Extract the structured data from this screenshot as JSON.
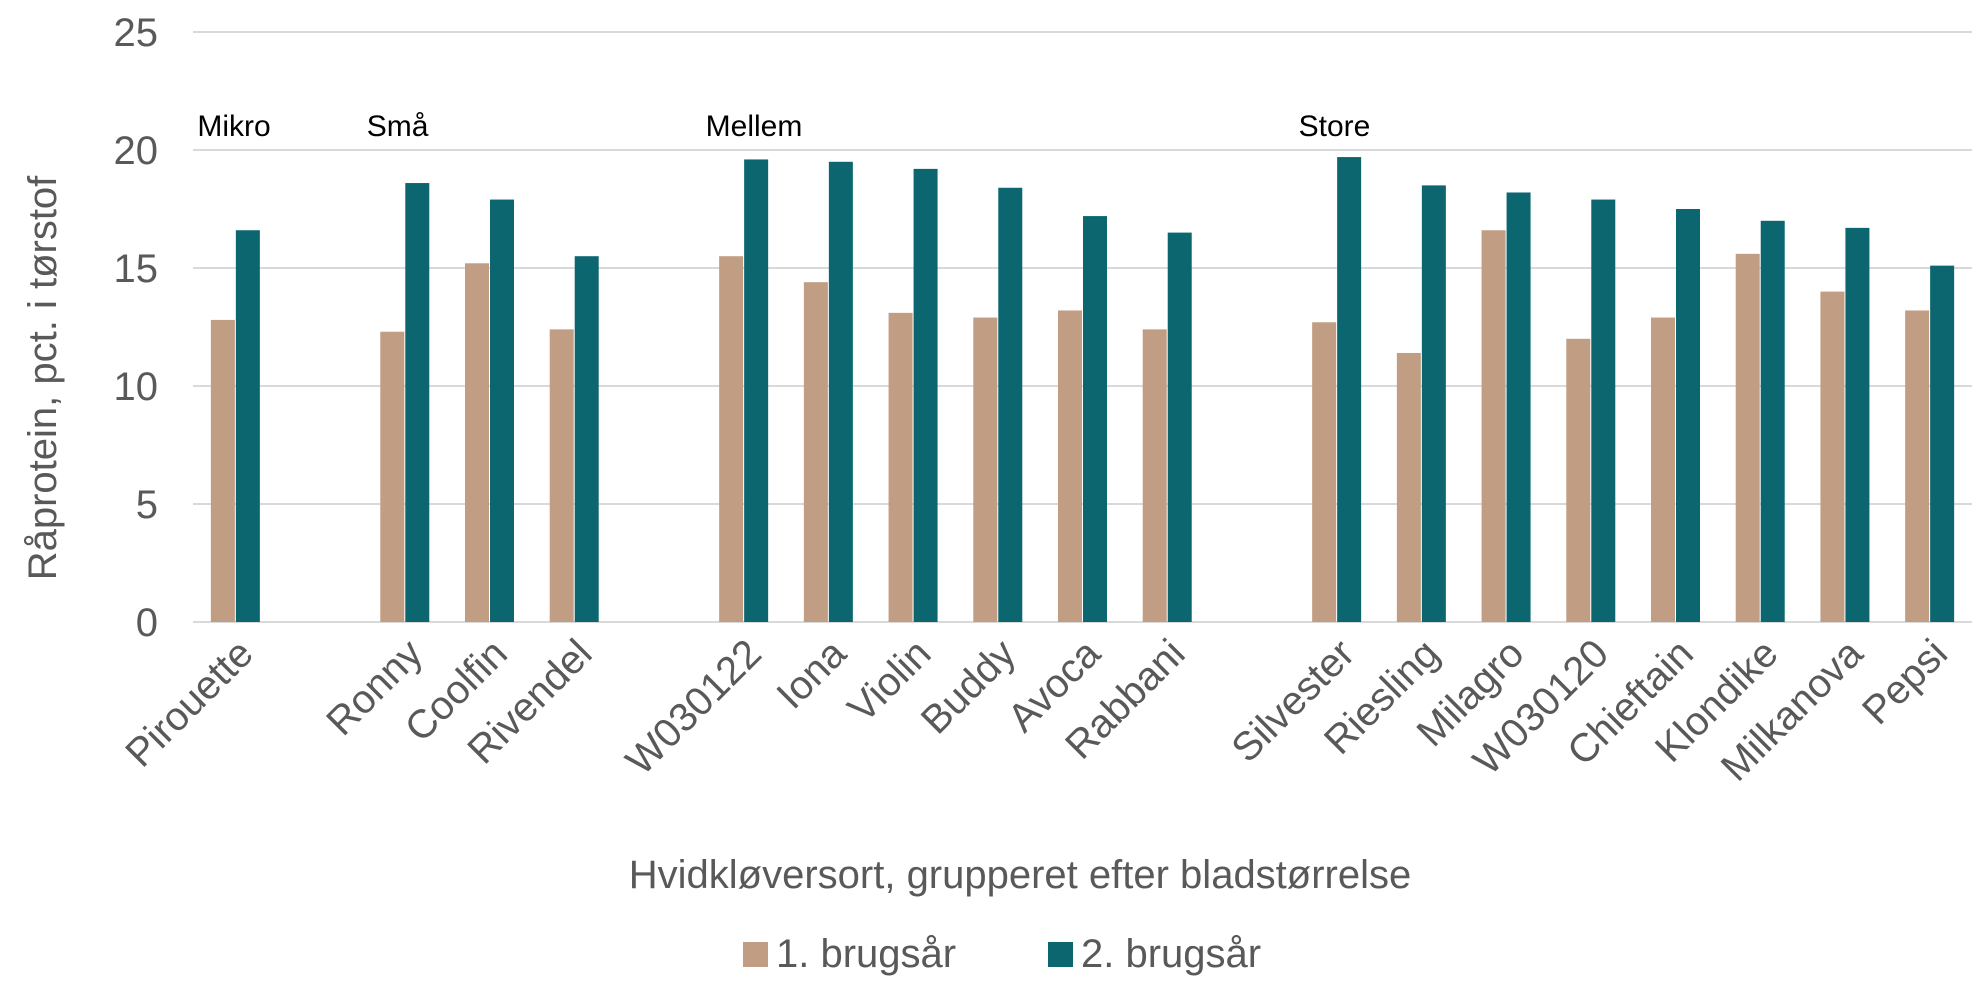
{
  "chart_data": {
    "type": "bar",
    "ylabel": "Råprotein, pct. i tørstof",
    "xlabel": "Hvidkløversort, grupperet efter bladstørrelse",
    "ylim": [
      0,
      25
    ],
    "yticks": [
      0,
      5,
      10,
      15,
      20,
      25
    ],
    "grid": true,
    "legend_position": "bottom",
    "categories": [
      "Pirouette",
      "",
      "Ronny",
      "Coolfin",
      "Rivendel",
      "",
      "W030122",
      "Iona",
      "Violin",
      "Buddy",
      "Avoca",
      "Rabbani",
      "",
      "Silvester",
      "Riesling",
      "Milagro",
      "W030120",
      "Chieftain",
      "Klondike",
      "Milkanova",
      "Pepsi"
    ],
    "series": [
      {
        "name": "1. brugsår",
        "color": "#c19e83",
        "values": [
          12.8,
          null,
          12.3,
          15.2,
          12.4,
          null,
          15.5,
          14.4,
          13.1,
          12.9,
          13.2,
          12.4,
          null,
          12.7,
          11.4,
          16.6,
          12.0,
          12.9,
          15.6,
          14.0,
          13.2
        ]
      },
      {
        "name": "2. brugsår",
        "color": "#0b6670",
        "values": [
          16.6,
          null,
          18.6,
          17.9,
          15.5,
          null,
          19.6,
          19.5,
          19.2,
          18.4,
          17.2,
          16.5,
          null,
          19.7,
          18.5,
          18.2,
          17.9,
          17.5,
          17.0,
          16.7,
          15.1
        ]
      }
    ],
    "annotations": [
      {
        "text": "Mikro",
        "category_index": 0
      },
      {
        "text": "Små",
        "category_index": 2
      },
      {
        "text": "Mellem",
        "category_index": 6
      },
      {
        "text": "Store",
        "category_index": 13
      }
    ]
  }
}
